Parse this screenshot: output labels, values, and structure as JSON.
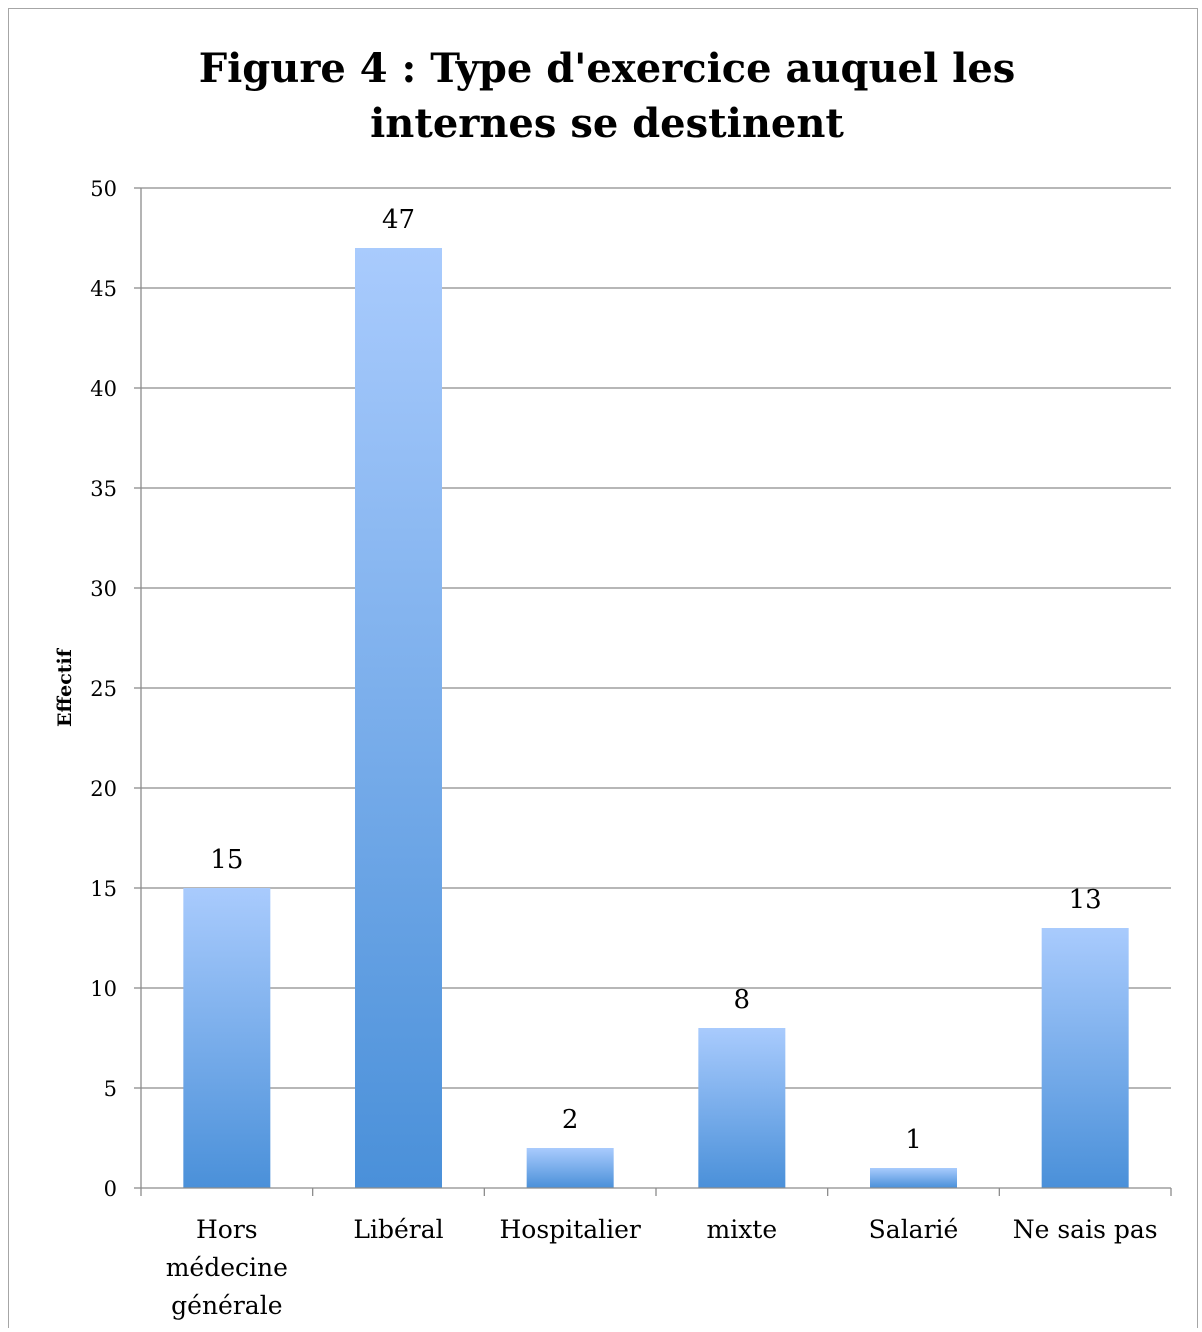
{
  "chart_data": {
    "type": "bar",
    "title_lines": [
      "Figure 4 : Type d'exercice auquel les",
      "internes se destinent"
    ],
    "ylabel": "Effectif",
    "xlabel": "",
    "categories": [
      [
        "Hors",
        "médecine",
        "générale"
      ],
      [
        "Libéral"
      ],
      [
        "Hospitalier"
      ],
      [
        "mixte"
      ],
      [
        "Salarié"
      ],
      [
        "Ne sais pas"
      ]
    ],
    "values": [
      15,
      47,
      2,
      8,
      1,
      13
    ],
    "data_labels": [
      "15",
      "47",
      "2",
      "8",
      "1",
      "13"
    ],
    "ylim": [
      0,
      50
    ],
    "yticks": [
      0,
      5,
      10,
      15,
      20,
      25,
      30,
      35,
      40,
      45,
      50
    ],
    "grid": true,
    "legend": "none",
    "colors": {
      "bar_top": "#a9cbfd",
      "bar_bottom": "#4a90d9",
      "grid": "#8c8c8c",
      "axis": "#8c8c8c"
    }
  }
}
